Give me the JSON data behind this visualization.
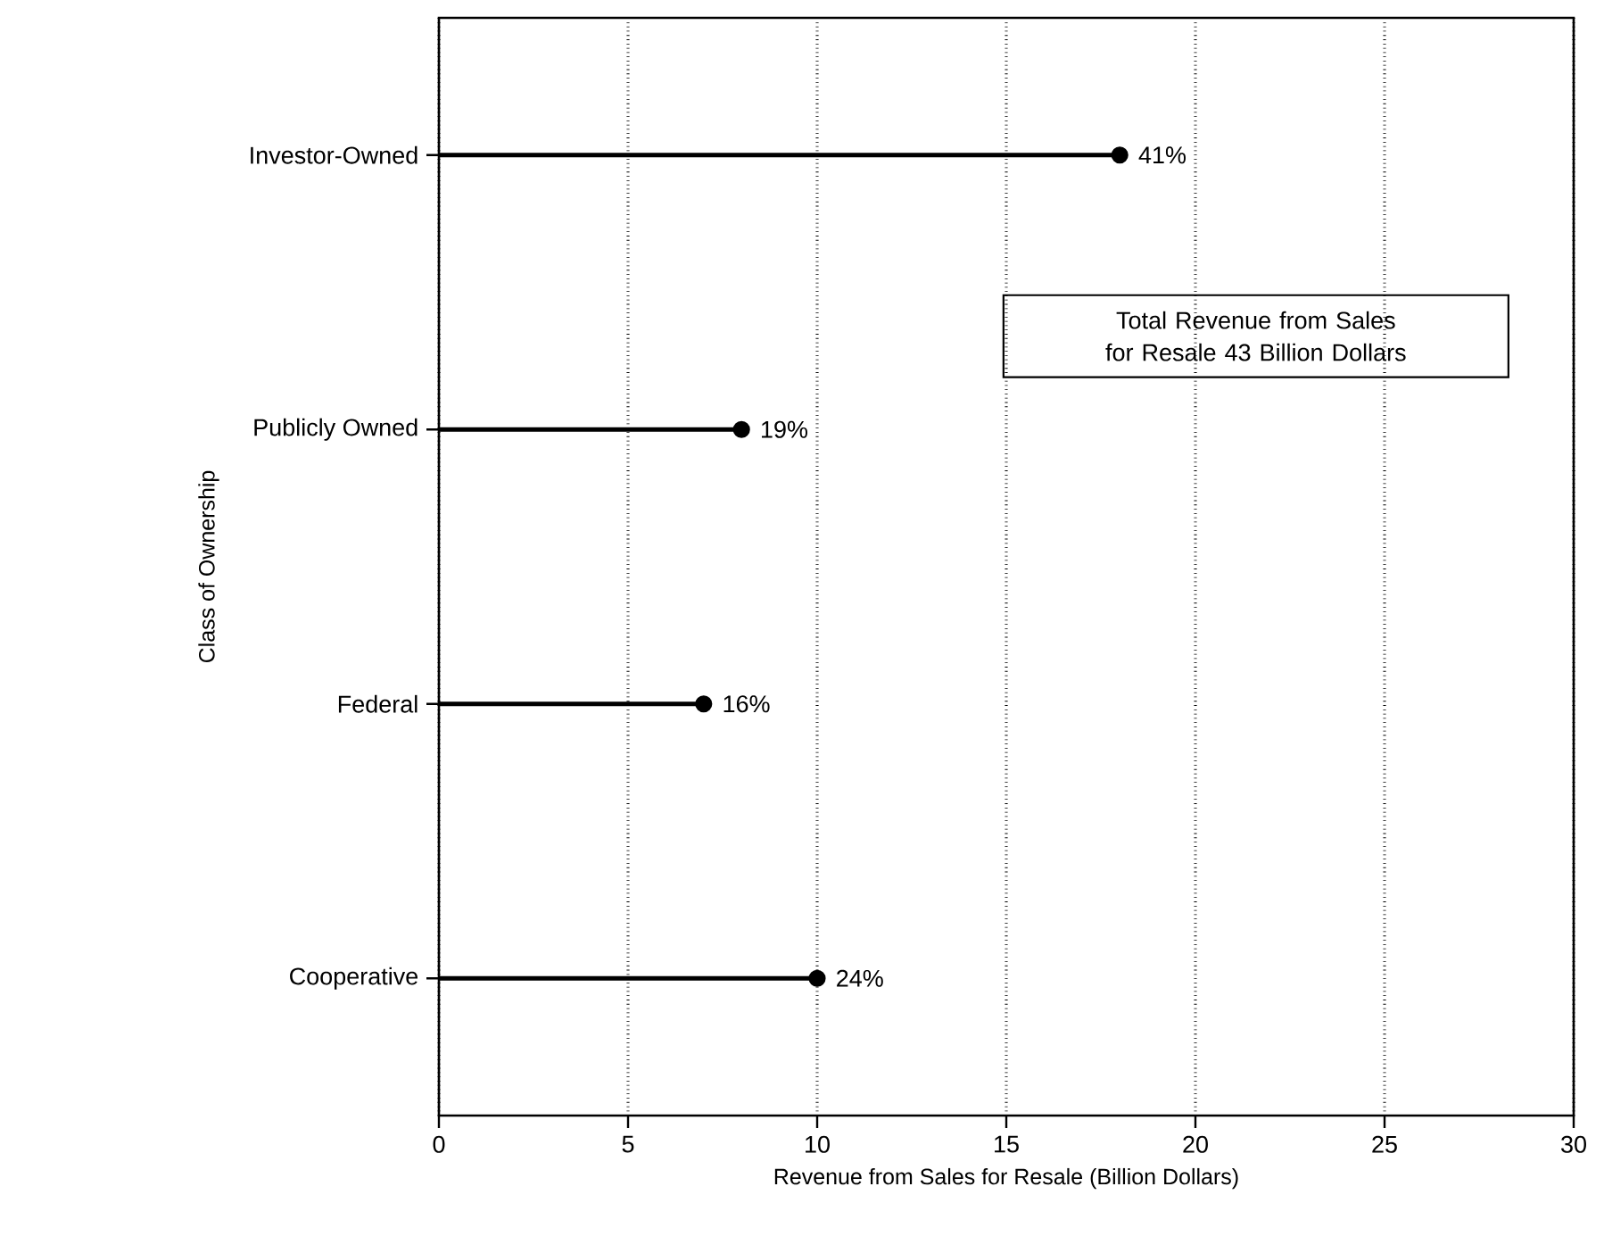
{
  "chart_data": {
    "type": "lollipop",
    "orientation": "horizontal",
    "categories": [
      "Investor-Owned",
      "Publicly Owned",
      "Federal",
      "Cooperative"
    ],
    "values": [
      18,
      8,
      7,
      10
    ],
    "color": "#000000",
    "marker": "circle",
    "xlim": [
      0,
      30
    ],
    "xticks": [
      0,
      5,
      10,
      15,
      20,
      25,
      30
    ],
    "grid": "x",
    "xlabel": "Revenue from Sales for Resale  (Billion Dollars)",
    "ylabel": "Class of Ownership",
    "annotations": [
      "Total Revenue from Sales for Resale 43 Billion Dollars",
      {
        "text": "41%",
        "x": 18,
        "y": "Investor-Owned"
      },
      {
        "text": "19%",
        "x": 8,
        "y": "Publicly Owned"
      },
      {
        "text": "16%",
        "x": 7,
        "y": "Federal"
      },
      {
        "text": "24%",
        "x": 10,
        "y": "Cooperative"
      }
    ]
  }
}
